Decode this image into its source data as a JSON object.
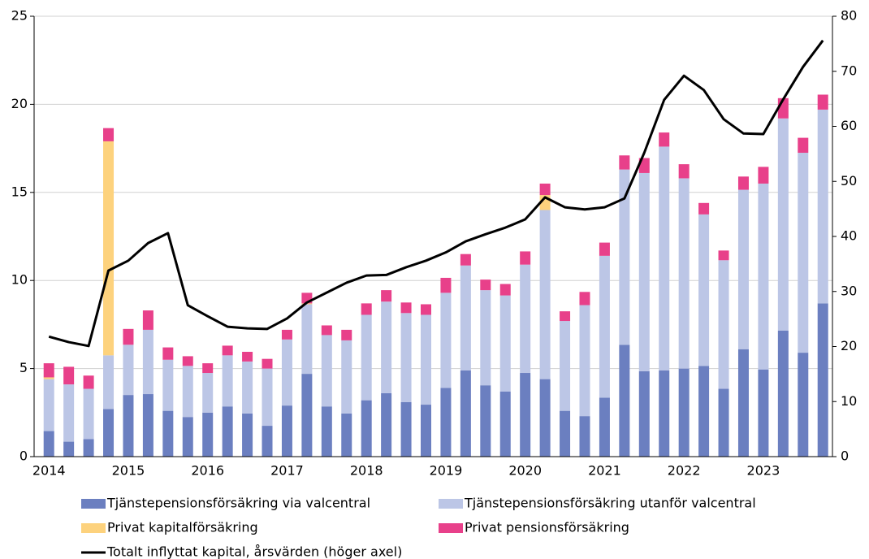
{
  "chart_data": {
    "type": "stacked_bar_line",
    "categories": [
      "2014",
      null,
      null,
      null,
      "2015",
      null,
      null,
      null,
      "2016",
      null,
      null,
      null,
      "2017",
      null,
      null,
      null,
      "2018",
      null,
      null,
      null,
      "2019",
      null,
      null,
      null,
      "2020",
      null,
      null,
      null,
      "2021",
      null,
      null,
      null,
      "2022",
      null,
      null,
      null,
      "2023",
      null,
      null,
      null
    ],
    "series": [
      {
        "name": "Tjänstepensionsförsäkring via valcentral",
        "color": "#6b7fc0",
        "values": [
          1.45,
          0.85,
          1.0,
          2.7,
          3.5,
          3.55,
          2.6,
          2.25,
          2.5,
          2.85,
          2.45,
          1.75,
          2.9,
          4.7,
          2.85,
          2.45,
          3.2,
          3.6,
          3.1,
          2.95,
          3.9,
          4.9,
          4.05,
          3.7,
          4.75,
          4.4,
          2.6,
          2.3,
          3.35,
          6.35,
          4.85,
          4.9,
          5.0,
          5.15,
          3.85,
          6.1,
          4.95,
          7.15,
          5.9,
          8.7
        ]
      },
      {
        "name": "Tjänstepensionsförsäkring utanför valcentral",
        "color": "#bcc6e6",
        "values": [
          2.95,
          3.25,
          2.85,
          3.05,
          2.85,
          3.65,
          2.9,
          2.9,
          2.25,
          2.9,
          2.95,
          3.25,
          3.75,
          3.95,
          4.05,
          4.15,
          4.85,
          5.2,
          5.05,
          5.1,
          5.4,
          5.95,
          5.4,
          5.45,
          6.15,
          9.6,
          5.1,
          6.3,
          8.05,
          9.95,
          11.25,
          12.7,
          10.8,
          8.6,
          7.3,
          9.05,
          10.55,
          12.05,
          11.35,
          11.0
        ]
      },
      {
        "name": "Privat kapitalförsäkring",
        "color": "#fdd27d",
        "values": [
          0.1,
          0,
          0,
          12.15,
          0,
          0,
          0,
          0,
          0,
          0,
          0,
          0,
          0,
          0.05,
          0,
          0,
          0,
          0,
          0,
          0,
          0,
          0,
          0,
          0,
          0,
          0.85,
          0,
          0,
          0,
          0,
          0,
          0,
          0,
          0,
          0,
          0,
          0,
          0,
          0,
          0
        ]
      },
      {
        "name": "Privat pensionsförsäkring",
        "color": "#e8408a",
        "values": [
          0.8,
          1.0,
          0.75,
          0.75,
          0.9,
          1.1,
          0.7,
          0.55,
          0.55,
          0.55,
          0.55,
          0.55,
          0.55,
          0.6,
          0.55,
          0.6,
          0.65,
          0.65,
          0.6,
          0.6,
          0.85,
          0.65,
          0.6,
          0.65,
          0.75,
          0.65,
          0.55,
          0.75,
          0.75,
          0.8,
          0.85,
          0.8,
          0.8,
          0.65,
          0.55,
          0.75,
          0.95,
          1.15,
          0.85,
          0.85
        ]
      },
      {
        "name": "Totalt inflyttat kapital, årsvärden (höger axel)",
        "color": "#000000",
        "axis": "y2",
        "values": [
          21.8,
          20.8,
          20.1,
          33.8,
          35.6,
          38.8,
          40.6,
          27.5,
          25.5,
          23.6,
          23.3,
          23.2,
          25.1,
          28.0,
          29.8,
          31.6,
          32.9,
          33.0,
          34.4,
          35.6,
          37.1,
          39.1,
          40.4,
          41.6,
          43.1,
          47.1,
          45.3,
          44.9,
          45.3,
          46.9,
          55.2,
          64.8,
          69.2,
          66.6,
          61.3,
          58.7,
          58.6,
          64.9,
          70.8,
          75.6
        ]
      }
    ],
    "ylim": [
      0,
      25
    ],
    "yticks": [
      0,
      5,
      10,
      15,
      20,
      25
    ],
    "y2lim": [
      0,
      80
    ],
    "y2ticks": [
      0,
      10,
      20,
      30,
      40,
      50,
      60,
      70,
      80
    ],
    "grid": true
  }
}
